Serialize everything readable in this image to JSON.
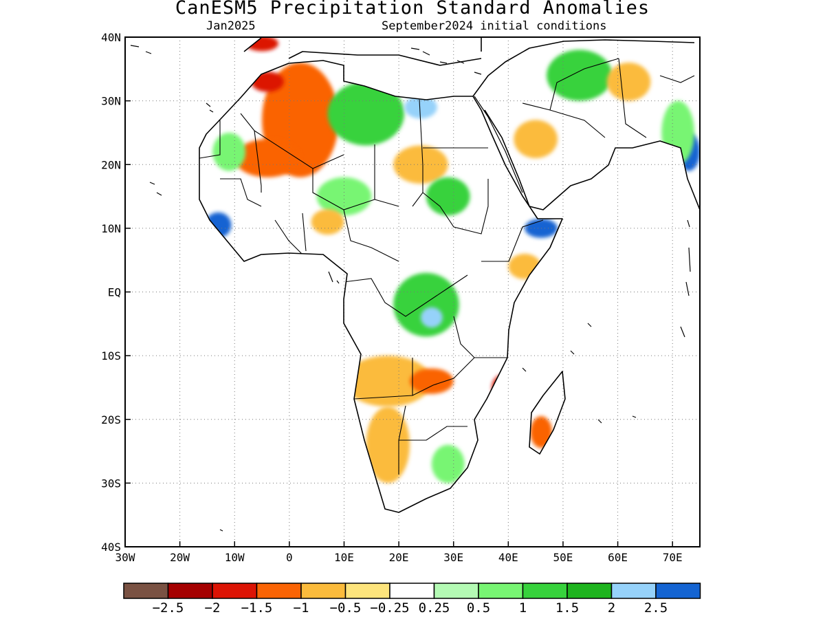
{
  "title": "CanESM5 Precipitation Standard Anomalies",
  "subtitle_left": "Jan2025",
  "subtitle_right": "September2024 initial conditions",
  "map": {
    "lon_range": [
      -30,
      75
    ],
    "lat_range": [
      -40,
      40
    ],
    "x_ticks": [
      {
        "value": -30,
        "label": "30W"
      },
      {
        "value": -20,
        "label": "20W"
      },
      {
        "value": -10,
        "label": "10W"
      },
      {
        "value": 0,
        "label": "0"
      },
      {
        "value": 10,
        "label": "10E"
      },
      {
        "value": 20,
        "label": "20E"
      },
      {
        "value": 30,
        "label": "30E"
      },
      {
        "value": 40,
        "label": "40E"
      },
      {
        "value": 50,
        "label": "50E"
      },
      {
        "value": 60,
        "label": "60E"
      },
      {
        "value": 70,
        "label": "70E"
      }
    ],
    "y_ticks": [
      {
        "value": 40,
        "label": "40N"
      },
      {
        "value": 30,
        "label": "30N"
      },
      {
        "value": 20,
        "label": "20N"
      },
      {
        "value": 10,
        "label": "10N"
      },
      {
        "value": 0,
        "label": "EQ"
      },
      {
        "value": -10,
        "label": "10S"
      },
      {
        "value": -20,
        "label": "20S"
      },
      {
        "value": -30,
        "label": "30S"
      },
      {
        "value": -40,
        "label": "40S"
      }
    ],
    "grid": "dotted"
  },
  "colorbar": {
    "colors": [
      "#7a5243",
      "#a50000",
      "#dc1405",
      "#fa6405",
      "#fbbb3c",
      "#fde47c",
      "#ffffff",
      "#b4fab4",
      "#78f573",
      "#37d23c",
      "#1eb41e",
      "#96d2fa",
      "#1464d2"
    ],
    "labels": [
      "-2.5",
      "-2",
      "-1.5",
      "-1",
      "-0.5",
      "-0.25",
      "0.25",
      "0.5",
      "1",
      "1.5",
      "2",
      "2.5"
    ]
  },
  "anomalies": [
    {
      "name": "nw-africa-dry",
      "lon": 2,
      "lat": 27,
      "rx": 7,
      "ry": 9,
      "cls": 3
    },
    {
      "name": "morocco-very-dry",
      "lon": -4,
      "lat": 33,
      "rx": 3,
      "ry": 1.6,
      "cls": 2
    },
    {
      "name": "iberia-very-dry",
      "lon": -5,
      "lat": 39,
      "rx": 3,
      "ry": 1.2,
      "cls": 2
    },
    {
      "name": "sahara-dry",
      "lon": -4,
      "lat": 21,
      "rx": 6,
      "ry": 3,
      "cls": 3
    },
    {
      "name": "mauritania-wet",
      "lon": -11,
      "lat": 22,
      "rx": 3,
      "ry": 3,
      "cls": 8
    },
    {
      "name": "libya-wet",
      "lon": 14,
      "lat": 28,
      "rx": 7,
      "ry": 5,
      "cls": 9
    },
    {
      "name": "egypt-very-wet",
      "lon": 24,
      "lat": 29,
      "rx": 3,
      "ry": 1.8,
      "cls": 11
    },
    {
      "name": "sudan-dry",
      "lon": 24,
      "lat": 20,
      "rx": 5,
      "ry": 3,
      "cls": 4
    },
    {
      "name": "chad-wet",
      "lon": 29,
      "lat": 15,
      "rx": 4,
      "ry": 3,
      "cls": 9
    },
    {
      "name": "sahel-wet",
      "lon": 10,
      "lat": 15,
      "rx": 5,
      "ry": 3,
      "cls": 8
    },
    {
      "name": "guinea-very-wet",
      "lon": -13,
      "lat": 10.5,
      "rx": 2.4,
      "ry": 2.0,
      "cls": 12
    },
    {
      "name": "nigeria-dry",
      "lon": 7,
      "lat": 11,
      "rx": 3,
      "ry": 2,
      "cls": 4
    },
    {
      "name": "somalia-very-wet",
      "lon": 46,
      "lat": 10,
      "rx": 3,
      "ry": 1.5,
      "cls": 12
    },
    {
      "name": "kenya-dry",
      "lon": 43,
      "lat": 4,
      "rx": 3,
      "ry": 2,
      "cls": 4
    },
    {
      "name": "congo-wet",
      "lon": 25,
      "lat": -2,
      "rx": 6,
      "ry": 5,
      "cls": 9
    },
    {
      "name": "congo-very-wet",
      "lon": 26,
      "lat": -4,
      "rx": 2,
      "ry": 1.6,
      "cls": 11
    },
    {
      "name": "angola-dry",
      "lon": 18,
      "lat": -14,
      "rx": 8,
      "ry": 4,
      "cls": 4
    },
    {
      "name": "zambia-drier",
      "lon": 26,
      "lat": -14,
      "rx": 4,
      "ry": 2,
      "cls": 3
    },
    {
      "name": "mozambique-very-dry",
      "lon": 39,
      "lat": -15,
      "rx": 2,
      "ry": 2,
      "cls": 2
    },
    {
      "name": "namibia-dry",
      "lon": 18,
      "lat": -24,
      "rx": 4,
      "ry": 6,
      "cls": 4
    },
    {
      "name": "southafrica-wet",
      "lon": 29,
      "lat": -27,
      "rx": 3,
      "ry": 3,
      "cls": 8
    },
    {
      "name": "madagascar-dry",
      "lon": 46,
      "lat": -22,
      "rx": 2,
      "ry": 2.5,
      "cls": 3
    },
    {
      "name": "arabia-wet",
      "lon": 53,
      "lat": 34,
      "rx": 6,
      "ry": 4,
      "cls": 9
    },
    {
      "name": "arabia-dry",
      "lon": 45,
      "lat": 24,
      "rx": 4,
      "ry": 3,
      "cls": 4
    },
    {
      "name": "iran-dry",
      "lon": 62,
      "lat": 33,
      "rx": 4,
      "ry": 3,
      "cls": 4
    },
    {
      "name": "india-very-wet",
      "lon": 73,
      "lat": 22,
      "rx": 2,
      "ry": 3,
      "cls": 12
    },
    {
      "name": "india-wet",
      "lon": 71,
      "lat": 25,
      "rx": 3,
      "ry": 5,
      "cls": 8
    }
  ],
  "ui": {
    "colors": {
      "frame": "#000000",
      "grid": "#777777"
    }
  }
}
